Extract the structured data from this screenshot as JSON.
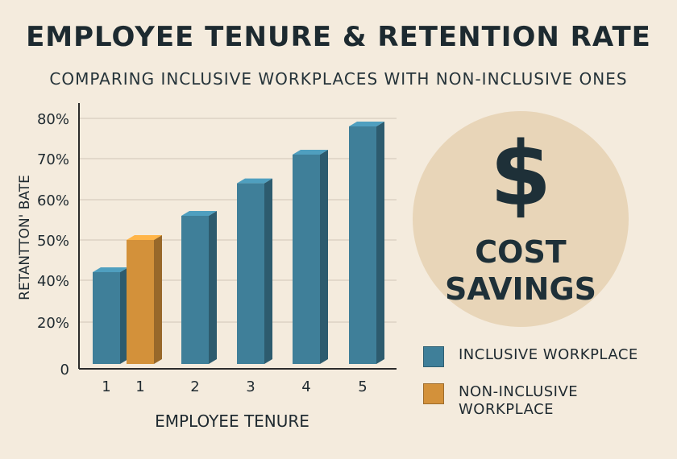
{
  "chart_data": {
    "type": "bar",
    "title": "EMPLOYEE TENURE & RETENTION RATE",
    "subtitle": "COMPARING INCLUSIVE WORKPLACES WITH NON-INCLUSIVE ONES",
    "xlabel": "EMPLOYEE TENURE",
    "ylabel": "RETANTTON' BATE",
    "y_tick_labels": [
      "0",
      "20%",
      "40%",
      "50%",
      "60%",
      "70%",
      "80%"
    ],
    "grid": true,
    "legend_placement": "bottom-right",
    "series": [
      {
        "name": "INCLUSIVE WORKPLACE",
        "color": "#3f7f99"
      },
      {
        "name": "NON-INCLUSIVE WORKPLACE",
        "color": "#d3913a"
      }
    ],
    "bars": [
      {
        "category": "1",
        "series": "INCLUSIVE WORKPLACE",
        "value": 42
      },
      {
        "category": "1",
        "series": "NON-INCLUSIVE WORKPLACE",
        "value": 50
      },
      {
        "category": "2",
        "series": "INCLUSIVE WORKPLACE",
        "value": 56
      },
      {
        "category": "3",
        "series": "INCLUSIVE WORKPLACE",
        "value": 64
      },
      {
        "category": "4",
        "series": "INCLUSIVE WORKPLACE",
        "value": 71
      },
      {
        "category": "5",
        "series": "INCLUSIVE WORKPLACE",
        "value": 78
      }
    ]
  },
  "callout": {
    "icon": "dollar-sign-icon",
    "symbol": "$",
    "text": "COST\nSAVINGS",
    "background": "#e8d5b8",
    "color": "#1e3038"
  },
  "colors": {
    "background": "#f4ebdd",
    "grid": "#cfc6b8",
    "axis": "#2b2b2b",
    "text": "#1f2a30"
  }
}
